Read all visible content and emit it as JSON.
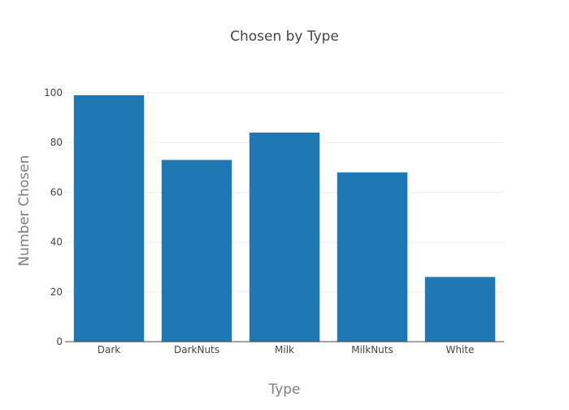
{
  "chart_data": {
    "type": "bar",
    "title": "Chosen by Type",
    "xlabel": "Type",
    "ylabel": "Number Chosen",
    "categories": [
      "Dark",
      "DarkNuts",
      "Milk",
      "MilkNuts",
      "White"
    ],
    "values": [
      99,
      73,
      84,
      68,
      26
    ],
    "ylim": [
      0,
      100
    ],
    "yticks": [
      0,
      20,
      40,
      60,
      80,
      100
    ],
    "grid": true,
    "legend": "none"
  },
  "colors": {
    "bar": "#1f77b4",
    "title": "#444444",
    "axis_title": "#7f7f7f",
    "tick_label": "#444444",
    "grid": "#eeeeee",
    "axis_line": "#444444"
  }
}
